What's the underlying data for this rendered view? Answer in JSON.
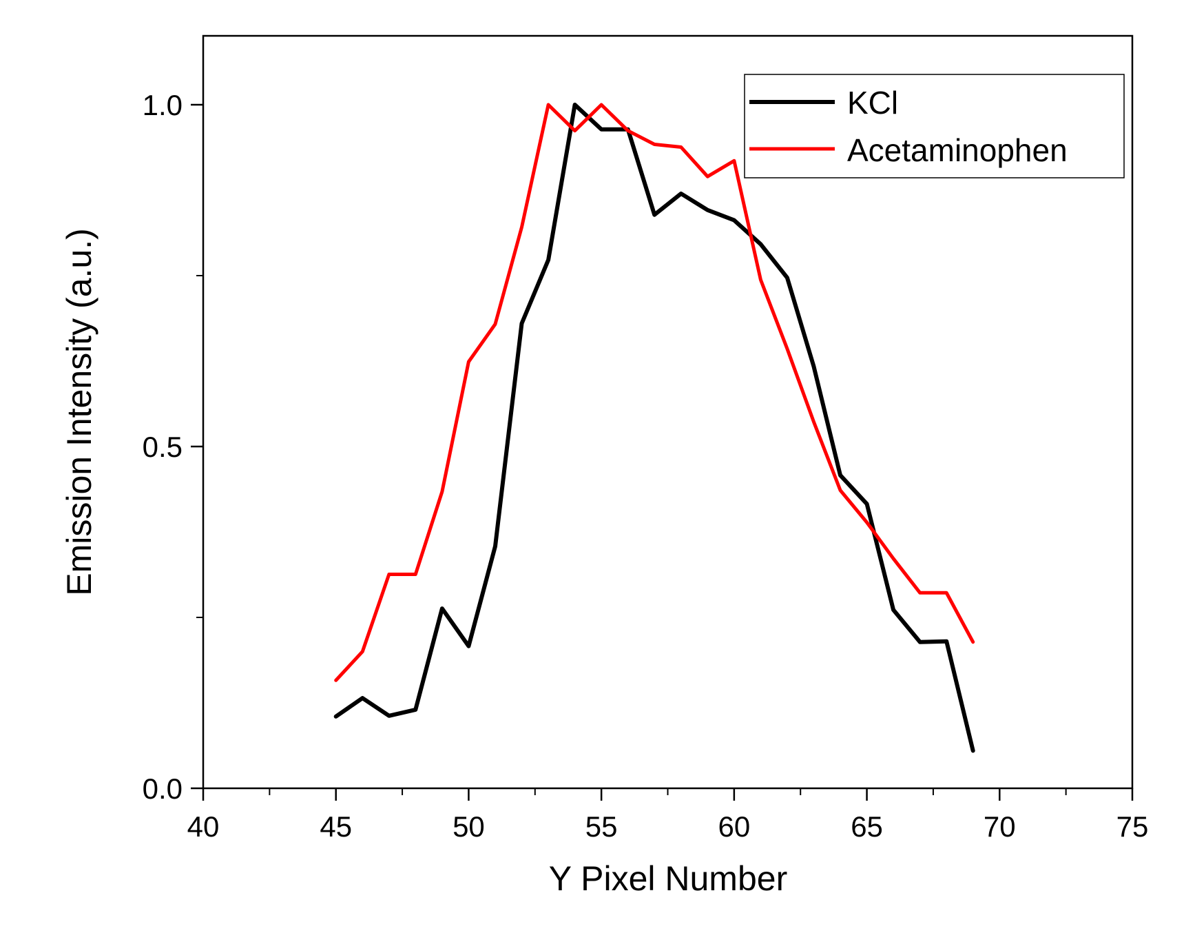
{
  "chart_data": {
    "type": "line",
    "title": "",
    "xlabel": "Y Pixel Number",
    "ylabel": "Emission Intensity (a.u.)",
    "xlim": [
      40,
      75
    ],
    "ylim": [
      0.0,
      1.1
    ],
    "x_major_ticks": [
      40,
      45,
      50,
      55,
      60,
      65,
      70,
      75
    ],
    "x_major_tick_labels": [
      "40",
      "45",
      "50",
      "55",
      "60",
      "65",
      "70",
      "75"
    ],
    "x_minor_ticks": [
      42.5,
      47.5,
      52.5,
      57.5,
      62.5,
      67.5,
      72.5
    ],
    "y_major_ticks": [
      0.0,
      0.5,
      1.0
    ],
    "y_major_tick_labels": [
      "0.0",
      "0.5",
      "1.0"
    ],
    "y_minor_ticks": [
      0.25,
      0.75
    ],
    "grid": false,
    "legend_position": "top-right",
    "x": [
      45,
      46,
      47,
      48,
      49,
      50,
      51,
      52,
      53,
      54,
      55,
      56,
      57,
      58,
      59,
      60,
      61,
      62,
      63,
      64,
      65,
      66,
      67,
      68,
      69
    ],
    "series": [
      {
        "name": "KCl",
        "color": "#000000",
        "values": [
          0.105,
          0.132,
          0.106,
          0.115,
          0.263,
          0.208,
          0.354,
          0.68,
          0.773,
          1.0,
          0.964,
          0.964,
          0.839,
          0.87,
          0.846,
          0.831,
          0.796,
          0.747,
          0.617,
          0.458,
          0.416,
          0.261,
          0.214,
          0.215,
          0.055
        ]
      },
      {
        "name": "Acetaminophen",
        "color": "#ff0000",
        "values": [
          0.158,
          0.2,
          0.313,
          0.313,
          0.434,
          0.624,
          0.679,
          0.821,
          1.0,
          0.962,
          1.0,
          0.962,
          0.942,
          0.938,
          0.895,
          0.918,
          0.744,
          0.643,
          0.536,
          0.436,
          0.389,
          0.336,
          0.286,
          0.286,
          0.214
        ]
      }
    ]
  }
}
